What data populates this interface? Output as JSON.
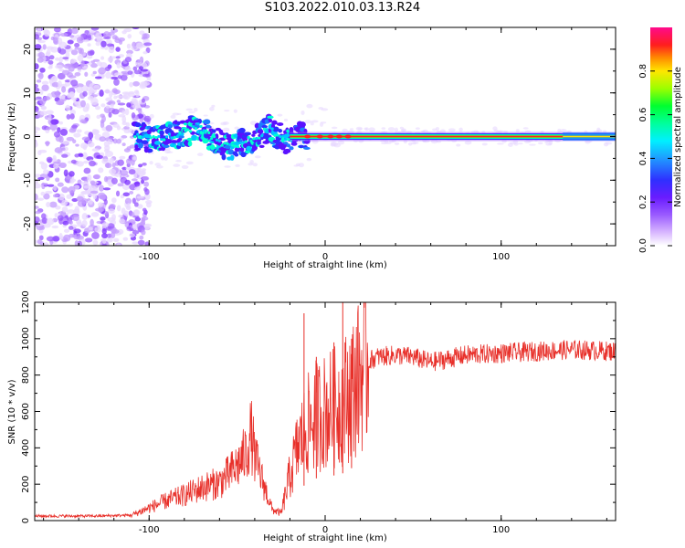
{
  "title": "S103.2022.010.03.13.R24",
  "colors": {
    "snr_line": "#e8302a",
    "spectrum_line": "#ff1e1e",
    "palette": [
      "#ffffff",
      "#e8d8ff",
      "#c39bff",
      "#9b5cff",
      "#7a2cff",
      "#5a10ff",
      "#2f2fff",
      "#1f7bff",
      "#00c8ff",
      "#00ffd0",
      "#00ff60",
      "#8cff00",
      "#ffe600",
      "#ff8c00",
      "#ff1e1e",
      "#ff0a8c"
    ]
  },
  "chart_data": [
    {
      "type": "heatmap",
      "xlabel": "Height of straight line (km)",
      "ylabel": "Frequency (Hz)",
      "xlim": [
        -165,
        165
      ],
      "ylim": [
        -25,
        25
      ],
      "x_ticks": [
        {
          "value": -100,
          "label": "-100"
        },
        {
          "value": 0,
          "label": "0"
        },
        {
          "value": 100,
          "label": "100"
        }
      ],
      "y_ticks": [
        {
          "value": -20,
          "label": "-20"
        },
        {
          "value": -10,
          "label": "-10"
        },
        {
          "value": 0,
          "label": "0"
        },
        {
          "value": 10,
          "label": "10"
        },
        {
          "value": 20,
          "label": "20"
        }
      ],
      "carrier_trace": [
        {
          "x": -105,
          "y": 0.0
        },
        {
          "x": -95,
          "y": -0.5
        },
        {
          "x": -85,
          "y": 0.3
        },
        {
          "x": -78,
          "y": 1.0
        },
        {
          "x": -72,
          "y": 2.5
        },
        {
          "x": -65,
          "y": 0.0
        },
        {
          "x": -60,
          "y": -1.5
        },
        {
          "x": -52,
          "y": -2.5
        },
        {
          "x": -45,
          "y": -1.0
        },
        {
          "x": -38,
          "y": 0.0
        },
        {
          "x": -32,
          "y": 2.0
        },
        {
          "x": -28,
          "y": 0.5
        },
        {
          "x": -22,
          "y": -0.8
        },
        {
          "x": -15,
          "y": 0.0
        },
        {
          "x": 0,
          "y": 0.0
        },
        {
          "x": 165,
          "y": 0.0
        }
      ],
      "colorbar": {
        "label": "Normalized spectral amplitude",
        "range": [
          0,
          1
        ],
        "ticks": [
          {
            "value": 0.0,
            "label": "0.0"
          },
          {
            "value": 0.2,
            "label": "0.2"
          },
          {
            "value": 0.4,
            "label": "0.4"
          },
          {
            "value": 0.6,
            "label": "0.6"
          },
          {
            "value": 0.8,
            "label": "0.8"
          }
        ]
      }
    },
    {
      "type": "line",
      "xlabel": "Height of straight line (km)",
      "ylabel": "SNR (10 * v/v)",
      "xlim": [
        -165,
        165
      ],
      "ylim": [
        0,
        1200
      ],
      "x_ticks": [
        {
          "value": -100,
          "label": "-100"
        },
        {
          "value": 0,
          "label": "0"
        },
        {
          "value": 100,
          "label": "100"
        }
      ],
      "y_ticks": [
        {
          "value": 0,
          "label": "0"
        },
        {
          "value": 200,
          "label": "200"
        },
        {
          "value": 400,
          "label": "400"
        },
        {
          "value": 600,
          "label": "600"
        },
        {
          "value": 800,
          "label": "800"
        },
        {
          "value": 1000,
          "label": "1000"
        },
        {
          "value": 1200,
          "label": "1200"
        }
      ],
      "x": [
        -165,
        -150,
        -130,
        -110,
        -100,
        -90,
        -80,
        -70,
        -60,
        -55,
        -50,
        -45,
        -42,
        -40,
        -35,
        -30,
        -25,
        -20,
        -15,
        -10,
        -5,
        0,
        5,
        10,
        15,
        20,
        25,
        30,
        40,
        50,
        60,
        80,
        100,
        120,
        140,
        165
      ],
      "y": [
        25,
        25,
        25,
        30,
        70,
        110,
        140,
        180,
        210,
        250,
        300,
        370,
        480,
        350,
        200,
        60,
        40,
        250,
        420,
        520,
        580,
        600,
        620,
        650,
        720,
        800,
        880,
        900,
        910,
        900,
        870,
        910,
        920,
        930,
        940,
        930
      ],
      "spikes": [
        {
          "x": -12,
          "y": 1140
        },
        {
          "x": -5,
          "y": 900
        },
        {
          "x": 5,
          "y": 980
        },
        {
          "x": 10,
          "y": 1200
        },
        {
          "x": 15,
          "y": 1000
        }
      ]
    }
  ]
}
